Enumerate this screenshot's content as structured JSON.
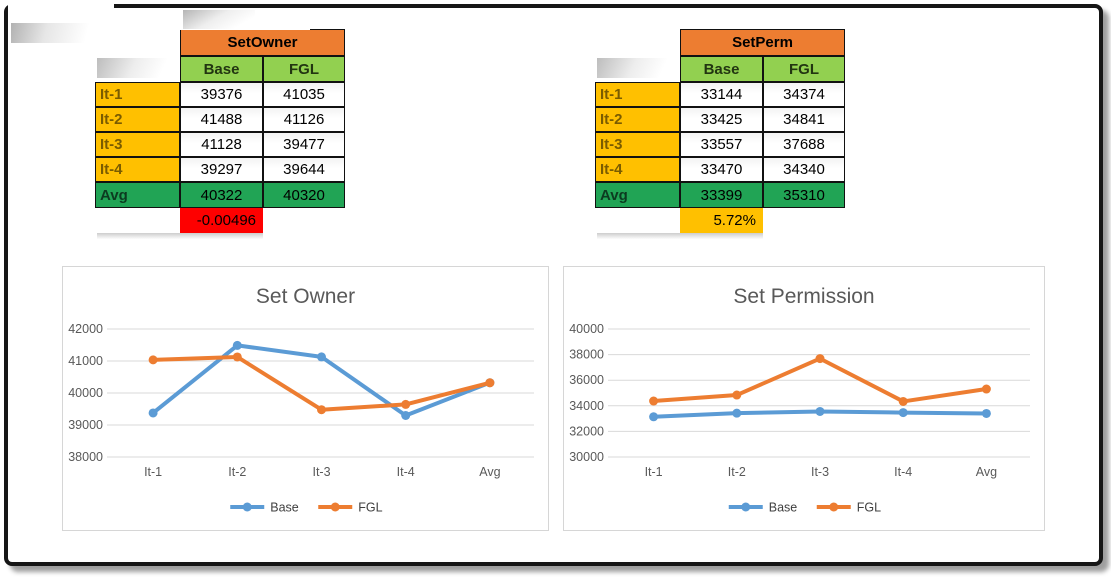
{
  "colors": {
    "orange_header": "#ED7D31",
    "green_subheader": "#92D050",
    "yellow_label": "#FFC000",
    "green_avg": "#21A455",
    "red_delta": "#FE0000",
    "series_blue": "#5B9BD5",
    "series_orange": "#ED7D31",
    "chart_text_gray": "#595959",
    "gridline_gray": "#D9D9D9"
  },
  "tables": [
    {
      "title": "SetOwner",
      "columns": [
        "Base",
        "FGL"
      ],
      "rows": [
        {
          "label": "It-1",
          "values": [
            "39376",
            "41035"
          ]
        },
        {
          "label": "It-2",
          "values": [
            "41488",
            "41126"
          ]
        },
        {
          "label": "It-3",
          "values": [
            "41128",
            "39477"
          ]
        },
        {
          "label": "It-4",
          "values": [
            "39297",
            "39644"
          ]
        }
      ],
      "avg_row": {
        "label": "Avg",
        "values": [
          "40322",
          "40320"
        ]
      },
      "delta": "-0.00496",
      "delta_bg": "#FE0000"
    },
    {
      "title": "SetPerm",
      "columns": [
        "Base",
        "FGL"
      ],
      "rows": [
        {
          "label": "It-1",
          "values": [
            "33144",
            "34374"
          ]
        },
        {
          "label": "It-2",
          "values": [
            "33425",
            "34841"
          ]
        },
        {
          "label": "It-3",
          "values": [
            "33557",
            "37688"
          ]
        },
        {
          "label": "It-4",
          "values": [
            "33470",
            "34340"
          ]
        }
      ],
      "avg_row": {
        "label": "Avg",
        "values": [
          "33399",
          "35310"
        ]
      },
      "delta": "5.72%",
      "delta_bg": "#FFC000"
    }
  ],
  "chart_data": [
    {
      "type": "line",
      "title": "Set Owner",
      "categories": [
        "It-1",
        "It-2",
        "It-3",
        "It-4",
        "Avg"
      ],
      "series": [
        {
          "name": "Base",
          "color": "#5B9BD5",
          "values": [
            39376,
            41488,
            41128,
            39297,
            40322
          ]
        },
        {
          "name": "FGL",
          "color": "#ED7D31",
          "values": [
            41035,
            41126,
            39477,
            39644,
            40320
          ]
        }
      ],
      "ylim": [
        38000,
        42000
      ],
      "yticks": [
        38000,
        39000,
        40000,
        41000,
        42000
      ],
      "grid": true,
      "legend_position": "bottom"
    },
    {
      "type": "line",
      "title": "Set Permission",
      "categories": [
        "It-1",
        "It-2",
        "It-3",
        "It-4",
        "Avg"
      ],
      "series": [
        {
          "name": "Base",
          "color": "#5B9BD5",
          "values": [
            33144,
            33425,
            33557,
            33470,
            33399
          ]
        },
        {
          "name": "FGL",
          "color": "#ED7D31",
          "values": [
            34374,
            34841,
            37688,
            34340,
            35310
          ]
        }
      ],
      "ylim": [
        30000,
        40000
      ],
      "yticks": [
        30000,
        32000,
        34000,
        36000,
        38000,
        40000
      ],
      "grid": true,
      "legend_position": "bottom"
    }
  ]
}
